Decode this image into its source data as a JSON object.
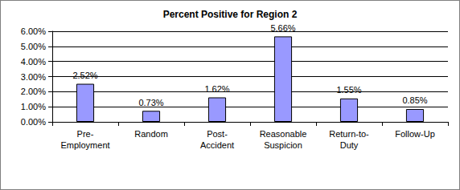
{
  "chart_data": {
    "type": "bar",
    "title": "Percent Positive for Region 2",
    "categories": [
      "Pre-\nEmployment",
      "Random",
      "Post-\nAccident",
      "Reasonable\nSuspicion",
      "Return-to-\nDuty",
      "Follow-Up"
    ],
    "values": [
      2.52,
      0.73,
      1.62,
      5.66,
      1.55,
      0.85
    ],
    "value_labels": [
      "2.52%",
      "0.73%",
      "1.62%",
      "5.66%",
      "1.55%",
      "0.85%"
    ],
    "color": "#9999ff",
    "ylim": [
      0,
      6
    ],
    "yticks": [
      {
        "value": 0,
        "label": "0.00%"
      },
      {
        "value": 1,
        "label": "1.00%"
      },
      {
        "value": 2,
        "label": "2.00%"
      },
      {
        "value": 3,
        "label": "3.00%"
      },
      {
        "value": 4,
        "label": "4.00%"
      },
      {
        "value": 5,
        "label": "5.00%"
      },
      {
        "value": 6,
        "label": "6.00%"
      }
    ],
    "grid": true,
    "data_labels": true
  }
}
